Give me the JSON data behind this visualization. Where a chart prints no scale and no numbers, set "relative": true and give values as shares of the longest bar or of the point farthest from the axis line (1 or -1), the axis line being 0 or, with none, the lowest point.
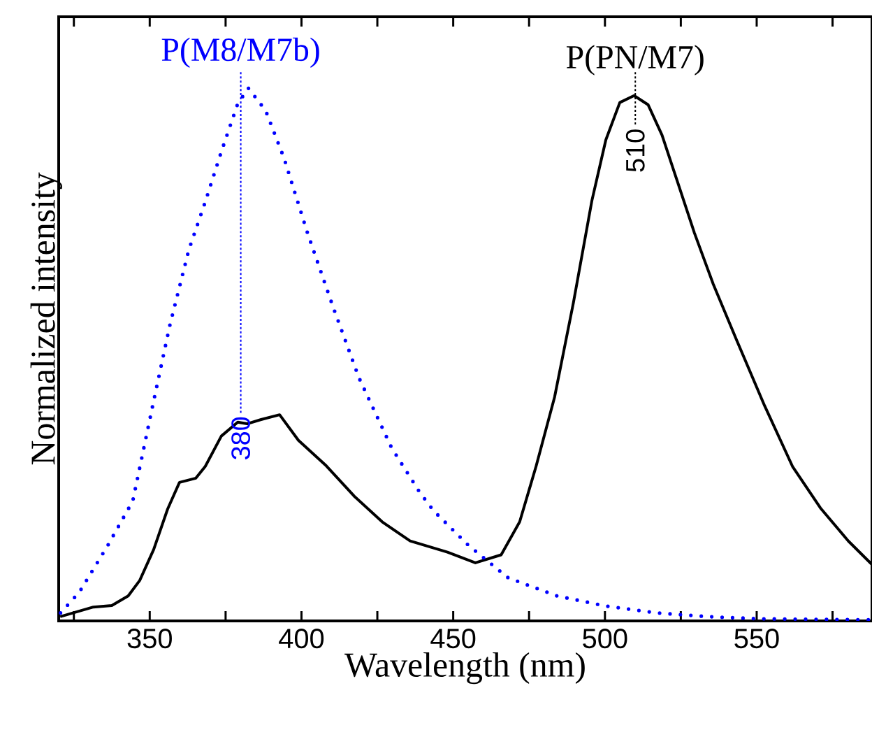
{
  "chart_data": {
    "type": "line",
    "xlabel": "Wavelength (nm)",
    "ylabel": "Normalized intensity",
    "relative": true,
    "xlim": [
      320,
      588
    ],
    "xticks": [
      {
        "value": 325,
        "label": null
      },
      350,
      {
        "value": 375,
        "label": null
      },
      400,
      {
        "value": 425,
        "label": null
      },
      450,
      {
        "value": 475,
        "label": null
      },
      500,
      {
        "value": 525,
        "label": null
      },
      550,
      {
        "value": 575,
        "label": null
      }
    ],
    "series": [
      {
        "color": "#000000",
        "line_style": "solid",
        "x": [
          320.5,
          331.4,
          337.5,
          342.9,
          346.7,
          351.3,
          355.9,
          359.8,
          365.2,
          368.3,
          373.6,
          379,
          382.1,
          386.7,
          392.8,
          399,
          408.2,
          417.4,
          426.6,
          435.8,
          448.1,
          457.3,
          465.8,
          471.9,
          477.3,
          483.4,
          489.6,
          495.7,
          500.3,
          504.9,
          509.6,
          514.2,
          518.8,
          523.4,
          529.5,
          535.7,
          543.4,
          552.6,
          561.8,
          571,
          580.2,
          587.8
        ],
        "values": [
          0.008,
          0.026,
          0.029,
          0.047,
          0.076,
          0.134,
          0.21,
          0.26,
          0.268,
          0.29,
          0.347,
          0.373,
          0.37,
          0.378,
          0.387,
          0.339,
          0.291,
          0.234,
          0.186,
          0.15,
          0.129,
          0.109,
          0.124,
          0.186,
          0.29,
          0.42,
          0.597,
          0.789,
          0.903,
          0.973,
          0.986,
          0.969,
          0.912,
          0.833,
          0.728,
          0.632,
          0.527,
          0.404,
          0.29,
          0.212,
          0.15,
          0.107
        ]
      },
      {
        "color": "#0000ff",
        "line_style": "dotted",
        "x": [
          320.6,
          326.8,
          336,
          344.4,
          351.3,
          356.7,
          362.9,
          368.2,
          373.6,
          379,
          382.5,
          388.2,
          394.3,
          402,
          410.5,
          418.9,
          429.7,
          438.9,
          443.5,
          455,
          468.1,
          484.2,
          500.3,
          517.2,
          534.1,
          551,
          567.9,
          588
        ],
        "values": [
          0.015,
          0.054,
          0.14,
          0.225,
          0.413,
          0.557,
          0.697,
          0.785,
          0.881,
          0.971,
          1.0,
          0.958,
          0.868,
          0.728,
          0.588,
          0.457,
          0.325,
          0.242,
          0.207,
          0.142,
          0.081,
          0.047,
          0.028,
          0.015,
          0.008,
          0.004,
          0.003,
          0.002
        ]
      }
    ],
    "annotations": [
      {
        "text": "P(M8/M7b)",
        "x": 380,
        "y": 1.0
      },
      {
        "text": "P(PN/M7)",
        "x": 510,
        "y": 0.986
      }
    ],
    "ref_lines": [
      {
        "axis": "x",
        "value": 380,
        "label": "380",
        "color": "#0000ff",
        "line_style": "dotted"
      },
      {
        "axis": "x",
        "value": 510,
        "label": "510",
        "color": "#000000",
        "line_style": "dotted"
      }
    ]
  }
}
